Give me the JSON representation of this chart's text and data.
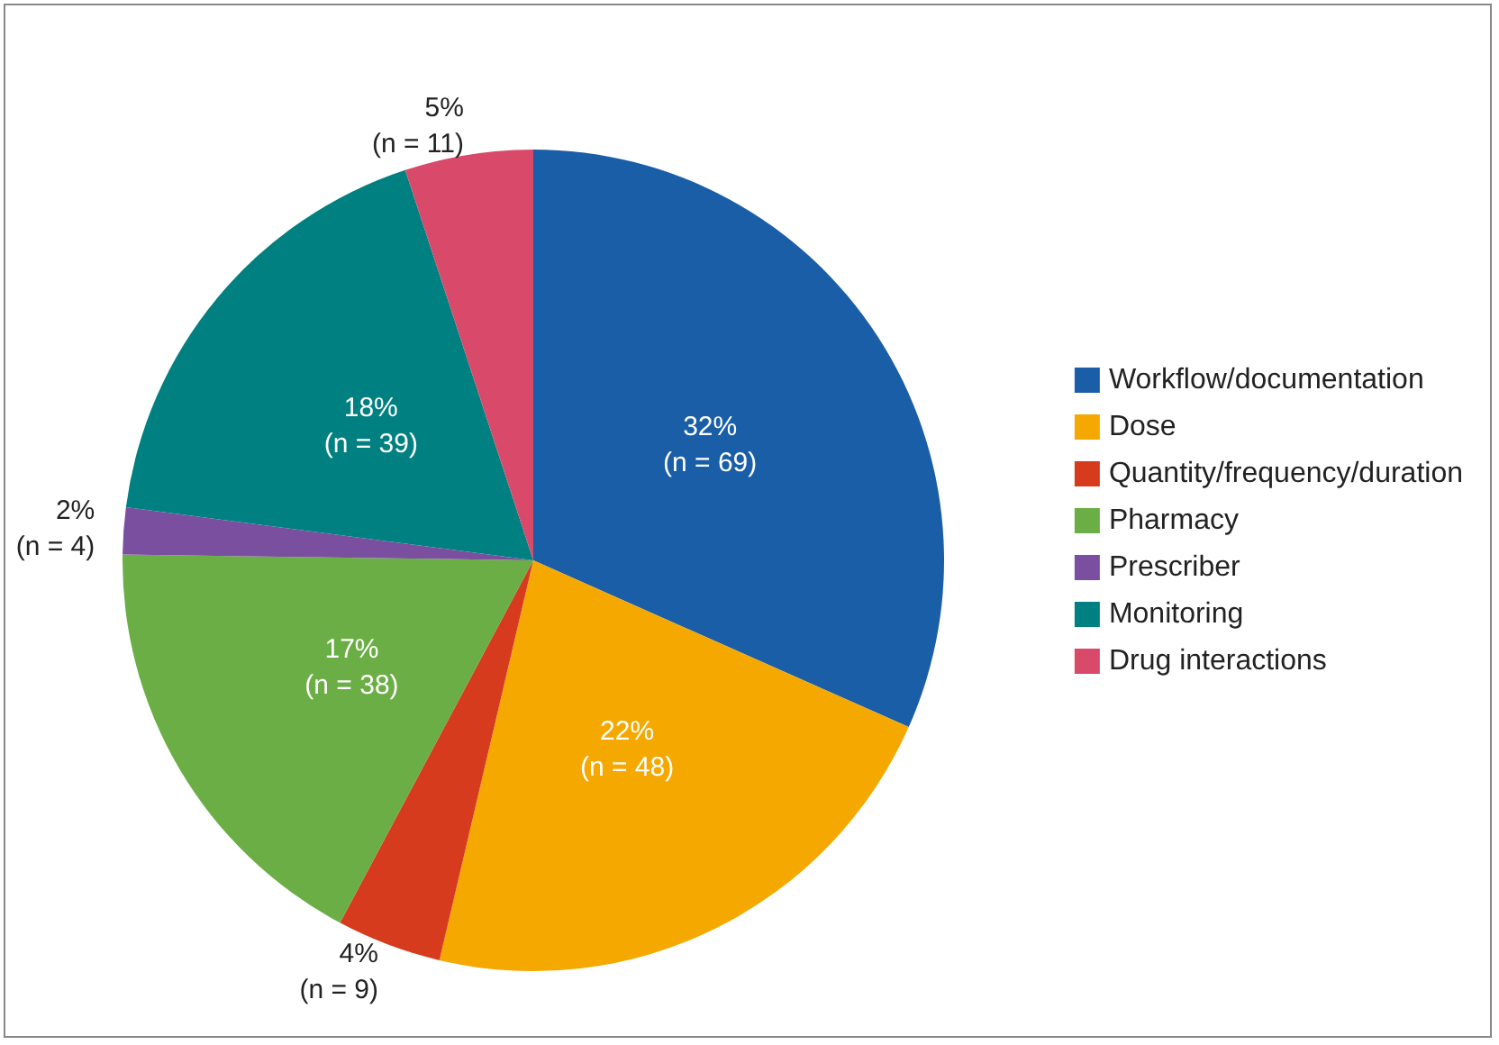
{
  "chart_data": {
    "type": "pie",
    "categories": [
      "Workflow/documentation",
      "Dose",
      "Quantity/frequency/duration",
      "Pharmacy",
      "Prescriber",
      "Monitoring",
      "Drug interactions"
    ],
    "values": [
      69,
      48,
      9,
      38,
      4,
      39,
      11
    ],
    "colors": [
      "#1a5ea8",
      "#f5a800",
      "#d63b1e",
      "#6aae45",
      "#7b4fa0",
      "#008080",
      "#d94a6a"
    ],
    "value_labels": [
      "32%\n(n = 69)",
      "22%\n(n = 48)",
      "4%\n(n = 9)",
      "17%\n(n = 38)",
      "2%\n(n = 4)",
      "18%\n(n = 39)",
      "5%\n(n = 11)"
    ],
    "legend": "right"
  }
}
